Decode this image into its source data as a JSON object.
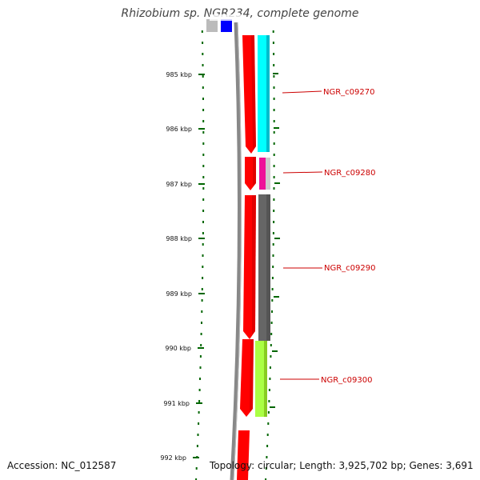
{
  "title": "Rhizobium sp. NGR234, complete genome",
  "footer": {
    "accession": "Accession: NC_012587",
    "topology": "Topology: circular; Length: 3,925,702 bp; Genes: 3,691"
  },
  "ruler": {
    "unit": "kbp",
    "ticks": [
      {
        "kbp": 985,
        "label": "985 kbp"
      },
      {
        "kbp": 986,
        "label": "986 kbp"
      },
      {
        "kbp": 987,
        "label": "987 kbp"
      },
      {
        "kbp": 988,
        "label": "988 kbp"
      },
      {
        "kbp": 989,
        "label": "989 kbp"
      },
      {
        "kbp": 990,
        "label": "990 kbp"
      },
      {
        "kbp": 991,
        "label": "991 kbp"
      },
      {
        "kbp": 992,
        "label": "992 kbp"
      }
    ]
  },
  "gene_labels": [
    {
      "text": "NGR_c09270",
      "color": "#cc0000"
    },
    {
      "text": "NGR_c09280",
      "color": "#cc0000"
    },
    {
      "text": "NGR_c09290",
      "color": "#cc0000"
    },
    {
      "text": "NGR_c09300",
      "color": "#cc0000"
    }
  ],
  "colors": {
    "cds": "#ff0000",
    "cog_cyan": "#00ffff",
    "cog_magenta": "#ee1199",
    "cog_gray": "#666666",
    "cog_green": "#aaff44",
    "backbone": "#777777",
    "tick": "#006600"
  }
}
